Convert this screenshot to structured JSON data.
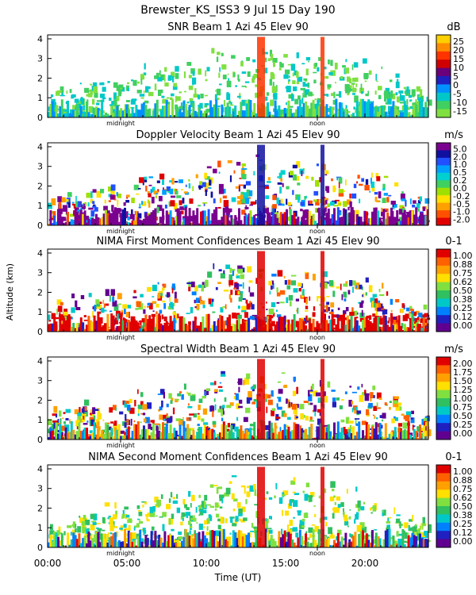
{
  "figure": {
    "title": "Brewster_KS_ISS3   9 Jul 15 Day 190",
    "ylabel": "Altitude (km)",
    "xlabel": "Time (UT)",
    "x_ticks": [
      "00:00",
      "05:00",
      "10:00",
      "15:00",
      "20:00"
    ],
    "midnight_label": "midnight",
    "noon_label": "noon"
  },
  "chart_data": [
    {
      "type": "heatmap",
      "title": "SNR Beam 1 Azi  45 Elev 90",
      "unit": "dB",
      "xlim": [
        0,
        24
      ],
      "ylim": [
        0,
        4.2
      ],
      "y_ticks": [
        "0",
        "1",
        "2",
        "3",
        "4"
      ],
      "colorbar": {
        "labels": [
          "25",
          "20",
          "15",
          "10",
          "5",
          "0",
          "-5",
          "-10",
          "-15"
        ],
        "colors": [
          "#ffd000",
          "#ff8c00",
          "#ff3300",
          "#d00000",
          "#6a007a",
          "#2020c0",
          "#0090ff",
          "#00c8c8",
          "#40d060",
          "#80e040"
        ]
      }
    },
    {
      "type": "heatmap",
      "title": "Doppler Velocity Beam 1 Azi  45 Elev 90",
      "unit": "m/s",
      "xlim": [
        0,
        24
      ],
      "ylim": [
        0,
        4.2
      ],
      "y_ticks": [
        "0",
        "1",
        "2",
        "3",
        "4"
      ],
      "colorbar": {
        "labels": [
          "5.0",
          "2.0",
          "1.0",
          "0.5",
          "0.2",
          "0.0",
          "-0.2",
          "-0.5",
          "-1.0",
          "-2.0"
        ],
        "colors": [
          "#7a0090",
          "#1010a0",
          "#2050ff",
          "#00a0ff",
          "#00d0d0",
          "#40d060",
          "#a0e000",
          "#ffe000",
          "#ffa000",
          "#ff5000",
          "#e00000"
        ]
      }
    },
    {
      "type": "heatmap",
      "title": "NIMA First Moment Confidences Beam 1 Azi  45 Elev 90",
      "unit": "0-1",
      "xlim": [
        0,
        24
      ],
      "ylim": [
        0,
        4.2
      ],
      "y_ticks": [
        "0",
        "1",
        "2",
        "3",
        "4"
      ],
      "colorbar": {
        "labels": [
          "1.00",
          "0.88",
          "0.75",
          "0.62",
          "0.50",
          "0.38",
          "0.25",
          "0.12",
          "0.00"
        ],
        "colors": [
          "#e00000",
          "#ff6000",
          "#ffa000",
          "#ffe000",
          "#80e040",
          "#30c060",
          "#00c8c8",
          "#0080ff",
          "#2020c0",
          "#600090"
        ]
      }
    },
    {
      "type": "heatmap",
      "title": "Spectral Width Beam 1 Azi  45 Elev 90",
      "unit": "m/s",
      "xlim": [
        0,
        24
      ],
      "ylim": [
        0,
        4.2
      ],
      "y_ticks": [
        "0",
        "1",
        "2",
        "3",
        "4"
      ],
      "colorbar": {
        "labels": [
          "2.00",
          "1.75",
          "1.50",
          "1.25",
          "1.00",
          "0.75",
          "0.50",
          "0.25",
          "0.00"
        ],
        "colors": [
          "#e00000",
          "#ff6000",
          "#ffa000",
          "#ffe000",
          "#80e040",
          "#30c060",
          "#00c8c8",
          "#0080ff",
          "#2020c0",
          "#600090"
        ]
      }
    },
    {
      "type": "heatmap",
      "title": "NIMA Second Moment Confidences Beam 1 Azi  45 Elev 90",
      "unit": "0-1",
      "xlim": [
        0,
        24
      ],
      "ylim": [
        0,
        4.2
      ],
      "y_ticks": [
        "0",
        "1",
        "2",
        "3",
        "4"
      ],
      "colorbar": {
        "labels": [
          "1.00",
          "0.88",
          "0.75",
          "0.62",
          "0.50",
          "0.38",
          "0.25",
          "0.12",
          "0.00"
        ],
        "colors": [
          "#e00000",
          "#ff6000",
          "#ffa000",
          "#ffe000",
          "#80e040",
          "#30c060",
          "#00c8c8",
          "#0080ff",
          "#2020c0",
          "#600090"
        ]
      }
    }
  ]
}
